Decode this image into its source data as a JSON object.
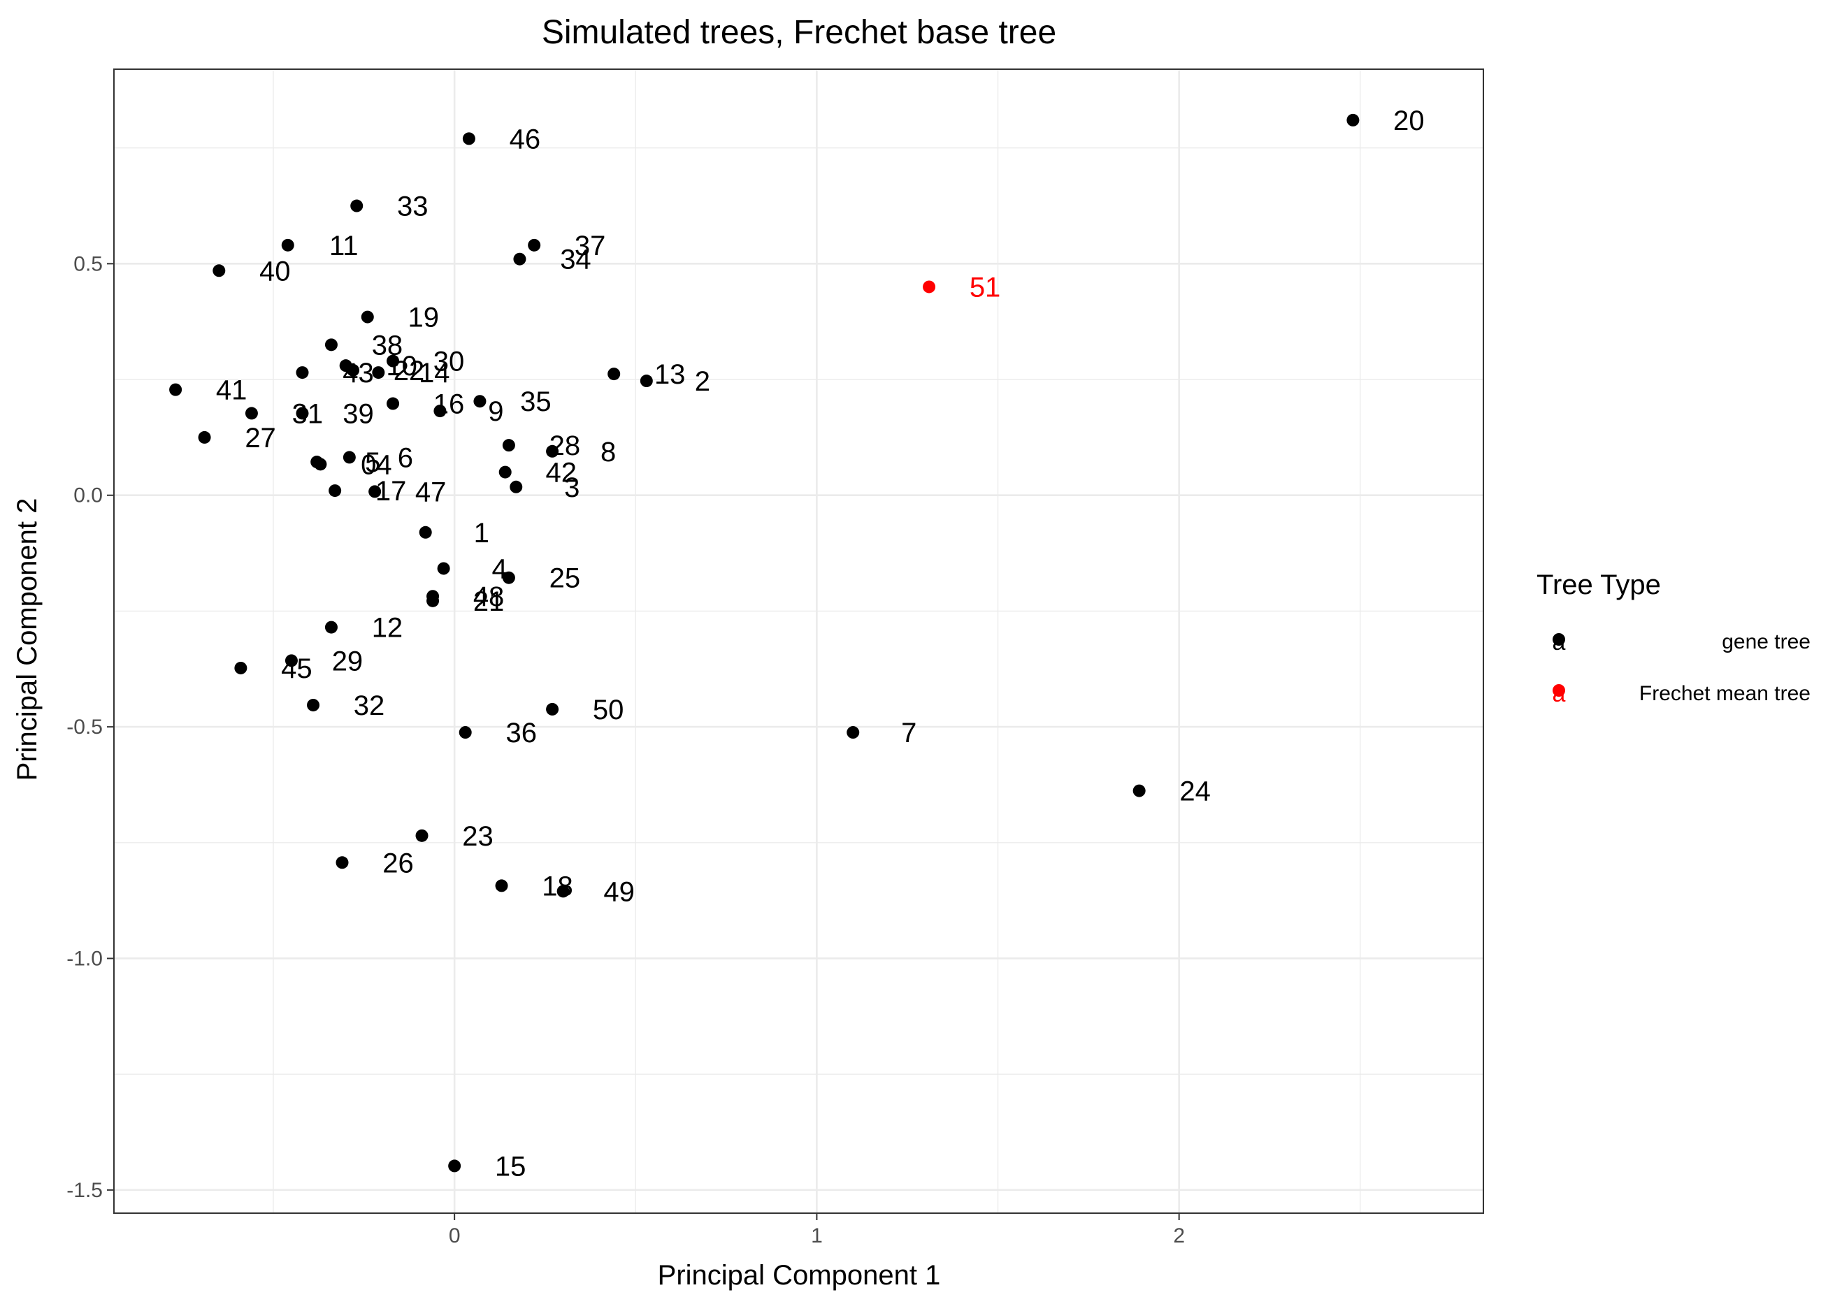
{
  "chart_data": {
    "type": "scatter",
    "title": "Simulated trees, Frechet base tree",
    "xlabel": "Principal Component 1",
    "ylabel": "Principal Component 2",
    "xlim": [
      -0.94,
      2.84
    ],
    "ylim": [
      -1.55,
      0.92
    ],
    "xticks": [
      0,
      1,
      2
    ],
    "yticks": [
      -1.5,
      -1.0,
      -0.5,
      0.0,
      0.5
    ],
    "ytick_labels": [
      "-1.5",
      "-1.0",
      "-0.5",
      "0.0",
      "0.5"
    ],
    "grid": true,
    "legend": {
      "title": "Tree Type",
      "position": "right",
      "entries": [
        {
          "label": "gene tree",
          "color": "#000000"
        },
        {
          "label": "Frechet mean tree",
          "color": "#ff0000"
        }
      ]
    },
    "colors": {
      "gene tree": "#000000",
      "Frechet mean tree": "#ff0000"
    },
    "series": [
      {
        "name": "gene tree",
        "points": [
          {
            "label": "20",
            "x": 2.48,
            "y": 0.81
          },
          {
            "label": "46",
            "x": 0.04,
            "y": 0.77
          },
          {
            "label": "33",
            "x": -0.27,
            "y": 0.625
          },
          {
            "label": "11",
            "x": -0.46,
            "y": 0.54
          },
          {
            "label": "37",
            "x": 0.22,
            "y": 0.54
          },
          {
            "label": "34",
            "x": 0.18,
            "y": 0.51
          },
          {
            "label": "40",
            "x": -0.65,
            "y": 0.485
          },
          {
            "label": "19",
            "x": -0.24,
            "y": 0.385
          },
          {
            "label": "38",
            "x": -0.34,
            "y": 0.325
          },
          {
            "label": "30",
            "x": -0.17,
            "y": 0.29
          },
          {
            "label": "10",
            "x": -0.3,
            "y": 0.28
          },
          {
            "label": "22",
            "x": -0.28,
            "y": 0.27
          },
          {
            "label": "14",
            "x": -0.21,
            "y": 0.265
          },
          {
            "label": "43",
            "x": -0.42,
            "y": 0.265
          },
          {
            "label": "13",
            "x": 0.44,
            "y": 0.262
          },
          {
            "label": "2",
            "x": 0.53,
            "y": 0.247
          },
          {
            "label": "41",
            "x": -0.77,
            "y": 0.228
          },
          {
            "label": "35",
            "x": 0.07,
            "y": 0.203
          },
          {
            "label": "16",
            "x": -0.17,
            "y": 0.198
          },
          {
            "label": "9",
            "x": -0.04,
            "y": 0.182
          },
          {
            "label": "31",
            "x": -0.56,
            "y": 0.177
          },
          {
            "label": "39",
            "x": -0.42,
            "y": 0.177
          },
          {
            "label": "27",
            "x": -0.69,
            "y": 0.125
          },
          {
            "label": "28",
            "x": 0.15,
            "y": 0.108
          },
          {
            "label": "8",
            "x": 0.27,
            "y": 0.095
          },
          {
            "label": "6",
            "x": -0.29,
            "y": 0.082
          },
          {
            "label": "5",
            "x": -0.38,
            "y": 0.072
          },
          {
            "label": "04",
            "x": -0.37,
            "y": 0.067
          },
          {
            "label": "42",
            "x": 0.14,
            "y": 0.05
          },
          {
            "label": "3",
            "x": 0.17,
            "y": 0.018
          },
          {
            "label": "17",
            "x": -0.33,
            "y": 0.01
          },
          {
            "label": "47",
            "x": -0.22,
            "y": 0.008
          },
          {
            "label": "1",
            "x": -0.08,
            "y": -0.08
          },
          {
            "label": "4",
            "x": -0.03,
            "y": -0.158
          },
          {
            "label": "25",
            "x": 0.15,
            "y": -0.178
          },
          {
            "label": "48",
            "x": -0.06,
            "y": -0.218
          },
          {
            "label": "21",
            "x": -0.06,
            "y": -0.228
          },
          {
            "label": "12",
            "x": -0.34,
            "y": -0.285
          },
          {
            "label": "29",
            "x": -0.45,
            "y": -0.357
          },
          {
            "label": "45",
            "x": -0.59,
            "y": -0.373
          },
          {
            "label": "32",
            "x": -0.39,
            "y": -0.453
          },
          {
            "label": "50",
            "x": 0.27,
            "y": -0.462
          },
          {
            "label": "36",
            "x": 0.03,
            "y": -0.512
          },
          {
            "label": "7",
            "x": 1.1,
            "y": -0.512
          },
          {
            "label": "24",
            "x": 1.89,
            "y": -0.638
          },
          {
            "label": "23",
            "x": -0.09,
            "y": -0.735
          },
          {
            "label": "26",
            "x": -0.31,
            "y": -0.793
          },
          {
            "label": "18",
            "x": 0.13,
            "y": -0.843
          },
          {
            "label": "49",
            "x": 0.3,
            "y": -0.855
          },
          {
            "label": "15",
            "x": 0.0,
            "y": -1.448
          }
        ]
      },
      {
        "name": "Frechet mean tree",
        "points": [
          {
            "label": "51",
            "x": 1.31,
            "y": 0.45
          }
        ]
      }
    ]
  }
}
